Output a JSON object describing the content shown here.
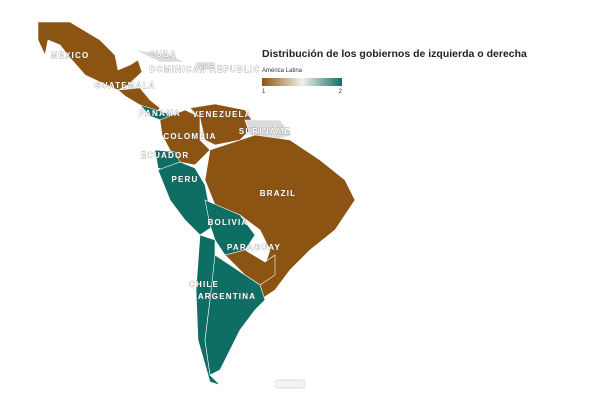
{
  "title": "Distribución de los gobiernos de izquierda o derecha",
  "subtitle": "América Latina",
  "legend": {
    "min": 1,
    "max": 2,
    "min_color": "#8b5413",
    "max_color": "#0f6e64",
    "no_data_color": "#dcdcdc"
  },
  "countries": [
    {
      "name": "MEXICO",
      "value": 1
    },
    {
      "name": "CUBA",
      "value": null
    },
    {
      "name": "DOMINICAN REPUBLIC",
      "value": null
    },
    {
      "name": "GUATEMALA",
      "value": 1
    },
    {
      "name": "PANAMA",
      "value": 2
    },
    {
      "name": "VENEZUELA",
      "value": 1
    },
    {
      "name": "COLOMBIA",
      "value": 1
    },
    {
      "name": "SURINAME",
      "value": null
    },
    {
      "name": "ECUADOR",
      "value": 2
    },
    {
      "name": "PERU",
      "value": 2
    },
    {
      "name": "BRAZIL",
      "value": 1
    },
    {
      "name": "BOLIVIA",
      "value": 2
    },
    {
      "name": "PARAGUAY",
      "value": 1
    },
    {
      "name": "CHILE",
      "value": 2
    },
    {
      "name": "ARGENTINA",
      "value": 2
    }
  ]
}
